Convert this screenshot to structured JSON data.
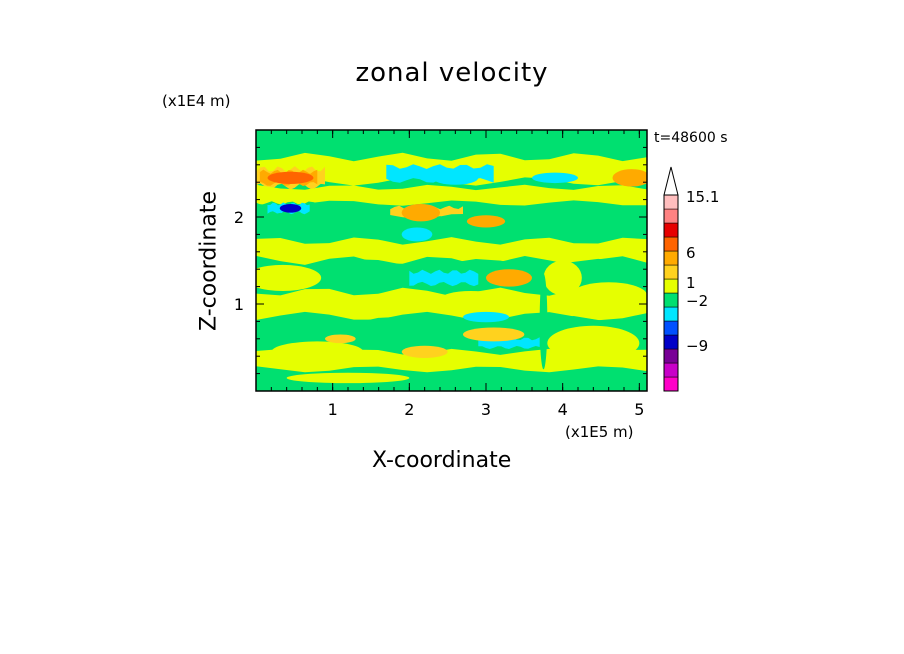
{
  "chart_data": {
    "type": "heatmap",
    "title": "zonal velocity",
    "xlabel": "X-coordinate",
    "ylabel": "Z-coordinate",
    "x_unit": "(x1E5 m)",
    "y_unit": "(x1E4 m)",
    "timestamp": "t=48600 s",
    "xlim": [
      0,
      5.1
    ],
    "ylim": [
      0,
      3.0
    ],
    "x_ticks": [
      1,
      2,
      3,
      4,
      5
    ],
    "x_tick_labels": [
      "1",
      "2",
      "3",
      "4",
      "5"
    ],
    "y_ticks": [
      1,
      2
    ],
    "y_tick_labels": [
      "1",
      "2"
    ],
    "colorbar": {
      "levels": [
        {
          "color": "#ff00c8"
        },
        {
          "color": "#c800c8"
        },
        {
          "color": "#780096"
        },
        {
          "color": "#0000c8"
        },
        {
          "color": "#0050ff"
        },
        {
          "color": "#00e6ff"
        },
        {
          "color": "#00e070"
        },
        {
          "color": "#e6ff00"
        },
        {
          "color": "#ffd21e"
        },
        {
          "color": "#ffaa00"
        },
        {
          "color": "#ff6400"
        },
        {
          "color": "#e60000"
        },
        {
          "color": "#ff8282"
        },
        {
          "color": "#ffbebe"
        }
      ],
      "labels": [
        "15.1",
        "6",
        "1",
        "−2",
        "−9"
      ],
      "label_values": [
        15.1,
        6,
        1,
        -2,
        -9
      ],
      "extend_top_color": "#ffffff"
    },
    "field": {
      "background_level": "#00e070",
      "bands": [
        {
          "z": 2.85,
          "thickness": 0.12,
          "color": "#00e070",
          "x_from": 0,
          "x_to": 5.1
        },
        {
          "z": 2.55,
          "thickness": 0.28,
          "color": "#e6ff00",
          "x_from": 0,
          "x_to": 5.1
        },
        {
          "z": 2.45,
          "thickness": 0.2,
          "color": "#ffd21e",
          "x_from": 0,
          "x_to": 0.9
        },
        {
          "z": 2.45,
          "thickness": 0.14,
          "color": "#ffaa00",
          "x_from": 0.05,
          "x_to": 0.8
        },
        {
          "z": 2.5,
          "thickness": 0.16,
          "color": "#00e6ff",
          "x_from": 1.7,
          "x_to": 3.1
        },
        {
          "z": 2.25,
          "thickness": 0.18,
          "color": "#e6ff00",
          "x_from": 0,
          "x_to": 5.1
        },
        {
          "z": 2.1,
          "thickness": 0.12,
          "color": "#00e070",
          "x_from": 0,
          "x_to": 1.1
        },
        {
          "z": 2.1,
          "thickness": 0.1,
          "color": "#00e6ff",
          "x_from": 0.15,
          "x_to": 0.7
        },
        {
          "z": 2.05,
          "thickness": 0.12,
          "color": "#ffd21e",
          "x_from": 1.75,
          "x_to": 2.7
        },
        {
          "z": 1.9,
          "thickness": 0.22,
          "color": "#00e070",
          "x_from": 0,
          "x_to": 5.1
        },
        {
          "z": 1.6,
          "thickness": 0.25,
          "color": "#e6ff00",
          "x_from": 0,
          "x_to": 5.1
        },
        {
          "z": 1.35,
          "thickness": 0.3,
          "color": "#00e070",
          "x_from": 0,
          "x_to": 5.1
        },
        {
          "z": 1.3,
          "thickness": 0.14,
          "color": "#00e6ff",
          "x_from": 2.0,
          "x_to": 2.9
        },
        {
          "z": 1.0,
          "thickness": 0.28,
          "color": "#e6ff00",
          "x_from": 0,
          "x_to": 5.1
        },
        {
          "z": 0.7,
          "thickness": 0.24,
          "color": "#00e070",
          "x_from": 0,
          "x_to": 5.1
        },
        {
          "z": 0.55,
          "thickness": 0.1,
          "color": "#00e6ff",
          "x_from": 2.9,
          "x_to": 3.7
        },
        {
          "z": 0.35,
          "thickness": 0.2,
          "color": "#e6ff00",
          "x_from": 0,
          "x_to": 5.1
        },
        {
          "z": 0.1,
          "thickness": 0.18,
          "color": "#00e070",
          "x_from": 0,
          "x_to": 5.1
        }
      ],
      "blobs": [
        {
          "x": 0.45,
          "z": 2.1,
          "rx": 0.14,
          "rz": 0.05,
          "color": "#0000c8"
        },
        {
          "x": 0.45,
          "z": 2.45,
          "rx": 0.3,
          "rz": 0.07,
          "color": "#ff6400"
        },
        {
          "x": 2.6,
          "z": 2.45,
          "rx": 0.3,
          "rz": 0.08,
          "color": "#00e6ff"
        },
        {
          "x": 3.9,
          "z": 2.45,
          "rx": 0.3,
          "rz": 0.06,
          "color": "#00e6ff"
        },
        {
          "x": 4.9,
          "z": 2.45,
          "rx": 0.25,
          "rz": 0.1,
          "color": "#ffaa00"
        },
        {
          "x": 2.15,
          "z": 2.05,
          "rx": 0.25,
          "rz": 0.1,
          "color": "#ffaa00"
        },
        {
          "x": 3.0,
          "z": 1.95,
          "rx": 0.25,
          "rz": 0.07,
          "color": "#ffaa00"
        },
        {
          "x": 2.1,
          "z": 1.8,
          "rx": 0.2,
          "rz": 0.08,
          "color": "#00e6ff"
        },
        {
          "x": 3.3,
          "z": 1.3,
          "rx": 0.3,
          "rz": 0.1,
          "color": "#ffaa00"
        },
        {
          "x": 0.35,
          "z": 1.3,
          "rx": 0.5,
          "rz": 0.15,
          "color": "#e6ff00"
        },
        {
          "x": 4.0,
          "z": 1.3,
          "rx": 0.25,
          "rz": 0.2,
          "color": "#e6ff00"
        },
        {
          "x": 4.6,
          "z": 1.1,
          "rx": 0.5,
          "rz": 0.15,
          "color": "#e6ff00"
        },
        {
          "x": 2.8,
          "z": 1.05,
          "rx": 0.4,
          "rz": 0.1,
          "color": "#e6ff00"
        },
        {
          "x": 3.1,
          "z": 0.65,
          "rx": 0.4,
          "rz": 0.08,
          "color": "#ffd21e"
        },
        {
          "x": 2.2,
          "z": 0.45,
          "rx": 0.3,
          "rz": 0.07,
          "color": "#ffd21e"
        },
        {
          "x": 3.0,
          "z": 0.85,
          "rx": 0.3,
          "rz": 0.06,
          "color": "#00e6ff"
        },
        {
          "x": 3.75,
          "z": 0.8,
          "rx": 0.05,
          "rz": 0.55,
          "color": "#00e070"
        },
        {
          "x": 4.4,
          "z": 0.55,
          "rx": 0.6,
          "rz": 0.2,
          "color": "#e6ff00"
        },
        {
          "x": 0.8,
          "z": 0.45,
          "rx": 0.6,
          "rz": 0.12,
          "color": "#e6ff00"
        },
        {
          "x": 1.1,
          "z": 0.6,
          "rx": 0.2,
          "rz": 0.05,
          "color": "#ffd21e"
        },
        {
          "x": 1.2,
          "z": 0.15,
          "rx": 0.8,
          "rz": 0.06,
          "color": "#e6ff00"
        }
      ]
    }
  }
}
